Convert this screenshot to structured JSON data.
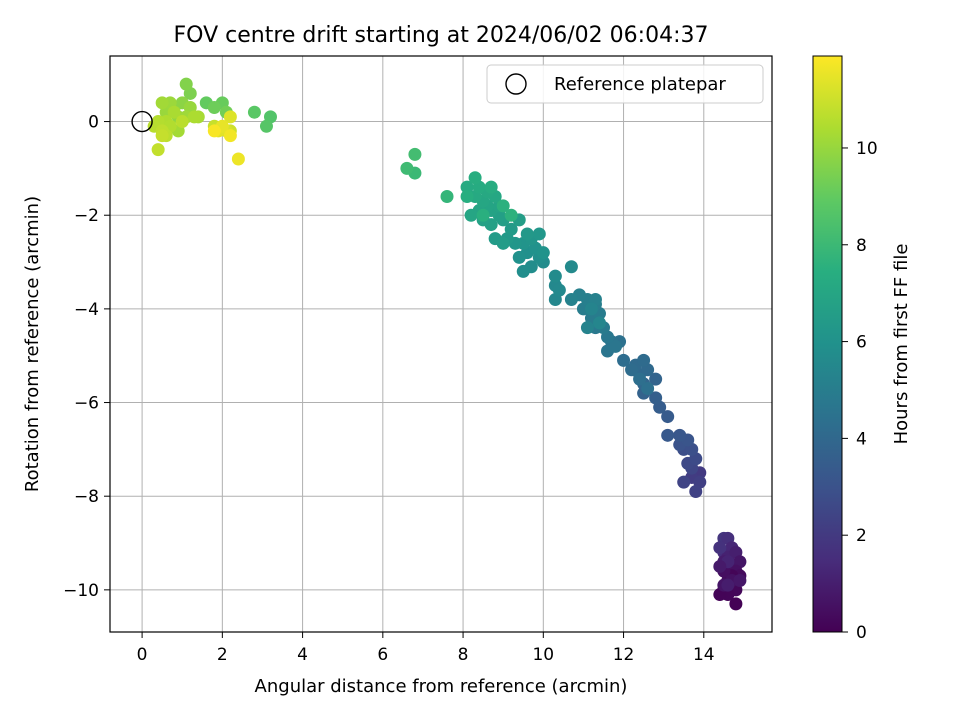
{
  "chart_data": {
    "type": "scatter",
    "title": "FOV centre drift starting at 2024/06/02 06:04:37",
    "xlabel": "Angular distance from reference (arcmin)",
    "ylabel": "Rotation from reference (arcmin)",
    "xlim": [
      -0.8,
      15.7
    ],
    "ylim": [
      -10.9,
      1.4
    ],
    "xticks": [
      0,
      2,
      4,
      6,
      8,
      10,
      12,
      14
    ],
    "yticks": [
      0,
      -2,
      -4,
      -6,
      -8,
      -10
    ],
    "x_tick_labels": [
      "0",
      "2",
      "4",
      "6",
      "8",
      "10",
      "12",
      "14"
    ],
    "y_tick_labels": [
      "0",
      "−2",
      "−4",
      "−6",
      "−8",
      "−10"
    ],
    "grid": true,
    "legend": {
      "placement": "top-right",
      "entries": [
        "Reference platepar"
      ]
    },
    "reference_point": {
      "x": 0,
      "y": 0
    },
    "colorbar": {
      "label": "Hours from first FF file",
      "colormap": "viridis",
      "range": [
        0,
        11.9
      ],
      "ticks": [
        0,
        2,
        4,
        6,
        8,
        10
      ],
      "tick_labels": [
        "0",
        "2",
        "4",
        "6",
        "8",
        "10"
      ]
    },
    "series": [
      {
        "points": [
          [
            14.5,
            -8.9,
            1.8
          ],
          [
            14.6,
            -8.9,
            1.6
          ],
          [
            14.5,
            -9.2,
            1.5
          ],
          [
            14.7,
            -9.1,
            1.3
          ],
          [
            14.6,
            -9.3,
            1.1
          ],
          [
            14.8,
            -9.2,
            1.0
          ],
          [
            14.5,
            -9.4,
            0.9
          ],
          [
            14.7,
            -9.5,
            0.8
          ],
          [
            14.9,
            -9.4,
            0.7
          ],
          [
            14.6,
            -9.6,
            0.6
          ],
          [
            14.8,
            -9.6,
            0.5
          ],
          [
            14.6,
            -9.8,
            0.4
          ],
          [
            14.9,
            -9.7,
            0.35
          ],
          [
            14.7,
            -9.9,
            0.3
          ],
          [
            14.5,
            -10.0,
            0.25
          ],
          [
            14.8,
            -10.0,
            0.2
          ],
          [
            14.6,
            -10.1,
            0.15
          ],
          [
            14.4,
            -10.1,
            0.1
          ],
          [
            14.7,
            -9.7,
            0.12
          ],
          [
            14.5,
            -9.6,
            0.45
          ],
          [
            14.8,
            -10.3,
            0.05
          ],
          [
            14.4,
            -9.1,
            1.7
          ],
          [
            14.6,
            -9.4,
            1.2
          ],
          [
            14.7,
            -9.8,
            0.55
          ],
          [
            14.5,
            -9.9,
            0.65
          ],
          [
            14.9,
            -9.8,
            0.75
          ],
          [
            14.4,
            -9.5,
            0.85
          ],
          [
            14.6,
            -9.9,
            0.95
          ],
          [
            13.9,
            -7.5,
            2.0
          ],
          [
            13.7,
            -7.6,
            2.1
          ],
          [
            13.9,
            -7.7,
            2.2
          ],
          [
            13.8,
            -7.9,
            2.3
          ],
          [
            13.5,
            -7.7,
            2.4
          ],
          [
            13.7,
            -7.4,
            2.5
          ],
          [
            13.6,
            -7.3,
            2.6
          ],
          [
            13.8,
            -7.2,
            2.7
          ],
          [
            13.5,
            -7.0,
            2.8
          ],
          [
            13.7,
            -7.0,
            2.9
          ],
          [
            13.4,
            -6.9,
            3.0
          ],
          [
            13.6,
            -6.8,
            3.1
          ],
          [
            13.4,
            -6.7,
            3.2
          ],
          [
            13.1,
            -6.7,
            3.3
          ],
          [
            13.1,
            -6.3,
            3.4
          ],
          [
            12.9,
            -6.1,
            3.5
          ],
          [
            12.8,
            -5.9,
            3.6
          ],
          [
            12.5,
            -5.8,
            3.7
          ],
          [
            12.8,
            -5.5,
            3.8
          ],
          [
            12.5,
            -5.6,
            3.9
          ],
          [
            12.4,
            -5.4,
            4.0
          ],
          [
            12.6,
            -5.3,
            4.05
          ],
          [
            12.3,
            -5.2,
            4.1
          ],
          [
            12.5,
            -5.1,
            4.15
          ],
          [
            12.2,
            -5.3,
            4.2
          ],
          [
            12.0,
            -5.1,
            4.25
          ],
          [
            12.4,
            -5.5,
            4.3
          ],
          [
            12.6,
            -5.7,
            4.35
          ],
          [
            11.9,
            -4.7,
            4.4
          ],
          [
            11.7,
            -4.7,
            4.5
          ],
          [
            11.6,
            -4.9,
            4.6
          ],
          [
            11.8,
            -4.8,
            4.65
          ],
          [
            11.6,
            -4.6,
            4.7
          ],
          [
            11.3,
            -4.4,
            4.8
          ],
          [
            11.5,
            -4.4,
            4.85
          ],
          [
            11.2,
            -4.2,
            4.9
          ],
          [
            11.4,
            -4.1,
            4.95
          ],
          [
            11.0,
            -4.0,
            5.0
          ],
          [
            11.3,
            -3.9,
            5.05
          ],
          [
            11.1,
            -3.8,
            5.1
          ],
          [
            10.9,
            -3.7,
            5.15
          ],
          [
            11.3,
            -3.8,
            5.2
          ],
          [
            10.7,
            -3.8,
            5.25
          ],
          [
            11.1,
            -4.4,
            5.3
          ],
          [
            11.2,
            -4.0,
            5.35
          ],
          [
            11.4,
            -4.3,
            5.4
          ],
          [
            10.3,
            -3.8,
            5.45
          ],
          [
            10.3,
            -3.5,
            5.5
          ],
          [
            10.4,
            -3.6,
            5.55
          ],
          [
            10.7,
            -3.1,
            5.6
          ],
          [
            10.3,
            -3.3,
            5.65
          ],
          [
            10.0,
            -3.0,
            5.7
          ],
          [
            9.7,
            -3.1,
            5.75
          ],
          [
            9.5,
            -3.2,
            5.8
          ],
          [
            9.9,
            -2.9,
            5.85
          ],
          [
            9.6,
            -2.8,
            5.9
          ],
          [
            9.4,
            -2.9,
            5.95
          ],
          [
            9.8,
            -2.7,
            6.0
          ],
          [
            10.0,
            -2.8,
            6.05
          ],
          [
            9.5,
            -2.6,
            6.1
          ],
          [
            9.7,
            -2.5,
            6.15
          ],
          [
            9.3,
            -2.6,
            6.2
          ],
          [
            9.9,
            -2.4,
            6.25
          ],
          [
            9.6,
            -2.4,
            6.3
          ],
          [
            9.1,
            -2.5,
            6.35
          ],
          [
            9.2,
            -2.3,
            6.4
          ],
          [
            8.8,
            -2.5,
            6.45
          ],
          [
            9.0,
            -2.6,
            6.5
          ],
          [
            9.4,
            -2.1,
            6.55
          ],
          [
            9.0,
            -2.1,
            6.6
          ],
          [
            8.9,
            -2.0,
            6.65
          ],
          [
            8.7,
            -2.2,
            6.7
          ],
          [
            8.5,
            -2.1,
            6.75
          ],
          [
            8.7,
            -1.9,
            6.8
          ],
          [
            8.9,
            -1.8,
            6.85
          ],
          [
            8.6,
            -1.8,
            6.9
          ],
          [
            8.4,
            -1.9,
            6.95
          ],
          [
            8.2,
            -2.0,
            7.0
          ],
          [
            8.5,
            -1.7,
            7.05
          ],
          [
            8.8,
            -1.6,
            7.1
          ],
          [
            8.6,
            -1.5,
            7.15
          ],
          [
            8.3,
            -1.6,
            7.2
          ],
          [
            8.1,
            -1.4,
            7.25
          ],
          [
            8.4,
            -1.4,
            7.3
          ],
          [
            8.7,
            -1.4,
            7.35
          ],
          [
            8.3,
            -1.2,
            7.4
          ],
          [
            8.1,
            -1.6,
            7.45
          ],
          [
            8.5,
            -2.0,
            7.5
          ],
          [
            9.0,
            -1.8,
            7.55
          ],
          [
            9.2,
            -2.0,
            7.6
          ],
          [
            7.6,
            -1.6,
            7.8
          ],
          [
            6.8,
            -1.1,
            8.0
          ],
          [
            6.6,
            -1.0,
            8.1
          ],
          [
            6.8,
            -0.7,
            8.2
          ],
          [
            3.2,
            0.1,
            8.6
          ],
          [
            3.1,
            -0.1,
            8.7
          ],
          [
            2.8,
            0.2,
            8.8
          ],
          [
            1.6,
            0.4,
            9.0
          ],
          [
            2.0,
            0.4,
            9.1
          ],
          [
            1.8,
            0.3,
            9.2
          ],
          [
            2.1,
            0.2,
            9.3
          ],
          [
            1.2,
            0.6,
            9.5
          ],
          [
            1.1,
            0.8,
            9.6
          ],
          [
            0.8,
            0.3,
            9.7
          ],
          [
            1.0,
            0.4,
            9.8
          ],
          [
            0.9,
            0.1,
            9.9
          ],
          [
            1.2,
            0.3,
            10.0
          ],
          [
            0.6,
            0.2,
            10.05
          ],
          [
            0.7,
            0.4,
            10.1
          ],
          [
            1.1,
            0.1,
            10.15
          ],
          [
            0.5,
            0.4,
            10.2
          ],
          [
            0.9,
            -0.2,
            10.25
          ],
          [
            1.4,
            0.1,
            10.3
          ],
          [
            0.8,
            0.2,
            10.35
          ],
          [
            1.3,
            0.1,
            10.4
          ],
          [
            0.6,
            0.0,
            10.45
          ],
          [
            0.7,
            -0.1,
            10.5
          ],
          [
            0.4,
            0.0,
            10.55
          ],
          [
            0.3,
            -0.1,
            10.6
          ],
          [
            1.0,
            0.0,
            10.65
          ],
          [
            0.6,
            -0.3,
            10.7
          ],
          [
            0.5,
            -0.2,
            10.75
          ],
          [
            0.4,
            -0.6,
            10.8
          ],
          [
            0.5,
            -0.3,
            10.85
          ],
          [
            1.8,
            -0.1,
            10.9
          ],
          [
            2.2,
            -0.2,
            11.0
          ],
          [
            2.1,
            -0.2,
            11.2
          ],
          [
            2.2,
            0.1,
            11.3
          ],
          [
            1.9,
            -0.2,
            11.4
          ],
          [
            2.0,
            -0.1,
            11.5
          ],
          [
            2.4,
            -0.8,
            11.6
          ],
          [
            2.2,
            -0.3,
            11.7
          ],
          [
            1.8,
            -0.2,
            11.8
          ]
        ]
      }
    ]
  }
}
